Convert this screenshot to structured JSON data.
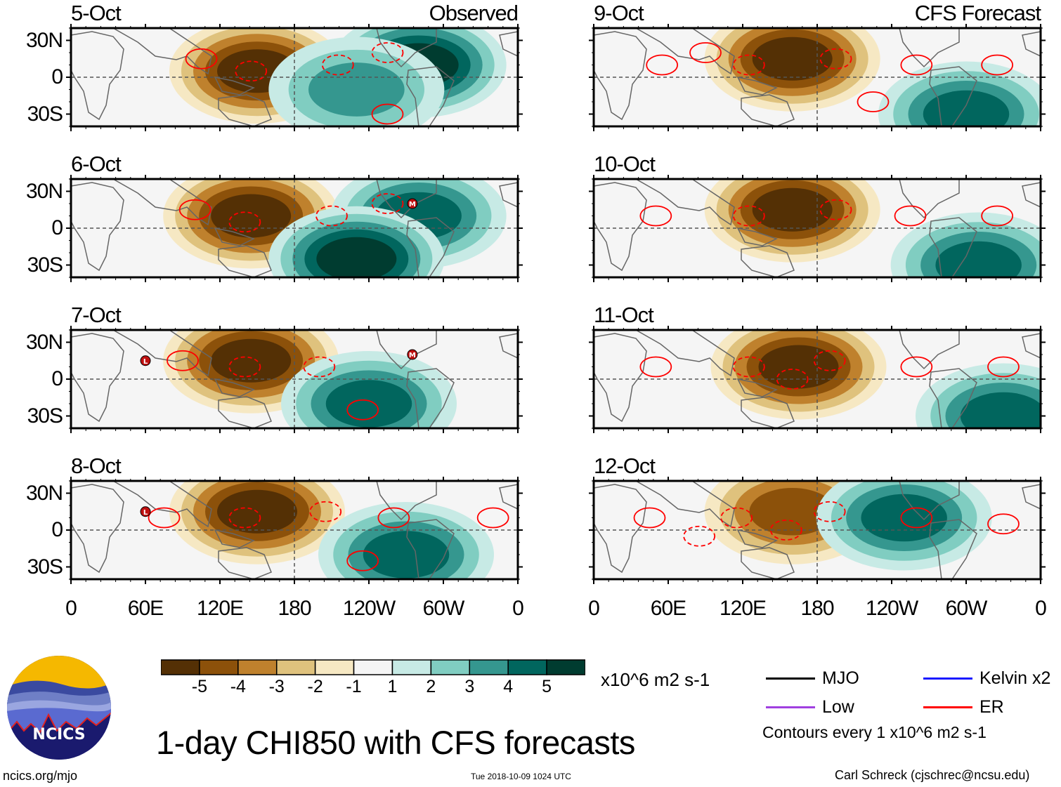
{
  "chart_data": {
    "type": "heatmap",
    "title": "1-day CHI850 with CFS forecasts",
    "variable": "CHI850 (850-hPa velocity potential) anomaly",
    "units": "x10^6 m2 s-1",
    "columns": [
      {
        "label": "Observed",
        "panels": [
          {
            "date": "5-Oct",
            "shading": [
              {
                "region": "Maritime Continent / W Pacific",
                "lon": 150,
                "lat": 5,
                "min_value": -5
              },
              {
                "region": "Central America / Caribbean",
                "lon": -80,
                "lat": 10,
                "max_value": 5
              },
              {
                "region": "Central-East Pacific",
                "lon": -130,
                "lat": -10,
                "max_value": 3
              }
            ],
            "er_contours": [
              {
                "lon": 105,
                "lat": 15,
                "style": "solid"
              },
              {
                "lon": 145,
                "lat": 5,
                "style": "dashed"
              },
              {
                "lon": -145,
                "lat": 10,
                "style": "dashed"
              },
              {
                "lon": -105,
                "lat": 20,
                "style": "dashed"
              },
              {
                "lon": -105,
                "lat": -30,
                "style": "solid"
              }
            ],
            "tc_markers": []
          },
          {
            "date": "6-Oct",
            "shading": [
              {
                "region": "W Pacific",
                "lon": 145,
                "lat": 10,
                "min_value": -5
              },
              {
                "region": "Caribbean",
                "lon": -80,
                "lat": 10,
                "max_value": 4
              },
              {
                "region": "SE Pacific",
                "lon": -130,
                "lat": -25,
                "max_value": 5
              }
            ],
            "er_contours": [
              {
                "lon": 100,
                "lat": 15,
                "style": "solid"
              },
              {
                "lon": 140,
                "lat": 5,
                "style": "dashed"
              },
              {
                "lon": -150,
                "lat": 10,
                "style": "dashed"
              },
              {
                "lon": -105,
                "lat": 20,
                "style": "dashed"
              }
            ],
            "tc_markers": [
              {
                "letter": "M",
                "lon": -85,
                "lat": 20
              }
            ]
          },
          {
            "date": "7-Oct",
            "shading": [
              {
                "region": "W Pacific",
                "lon": 145,
                "lat": 15,
                "min_value": -5
              },
              {
                "region": "SE Pacific",
                "lon": -120,
                "lat": -20,
                "max_value": 4
              }
            ],
            "er_contours": [
              {
                "lon": 90,
                "lat": 15,
                "style": "solid"
              },
              {
                "lon": 140,
                "lat": 10,
                "style": "dashed"
              },
              {
                "lon": -160,
                "lat": 10,
                "style": "dashed"
              },
              {
                "lon": -125,
                "lat": -25,
                "style": "solid"
              }
            ],
            "tc_markers": [
              {
                "letter": "L",
                "lon": 60,
                "lat": 15
              },
              {
                "letter": "M",
                "lon": -85,
                "lat": 20
              }
            ]
          },
          {
            "date": "8-Oct",
            "shading": [
              {
                "region": "W Pacific",
                "lon": 150,
                "lat": 15,
                "min_value": -5
              },
              {
                "region": "S Pacific / S America",
                "lon": -90,
                "lat": -20,
                "max_value": 4
              }
            ],
            "er_contours": [
              {
                "lon": 75,
                "lat": 10,
                "style": "solid"
              },
              {
                "lon": 140,
                "lat": 10,
                "style": "dashed"
              },
              {
                "lon": -155,
                "lat": 15,
                "style": "dashed"
              },
              {
                "lon": -125,
                "lat": -25,
                "style": "solid"
              },
              {
                "lon": -100,
                "lat": 10,
                "style": "solid"
              },
              {
                "lon": -20,
                "lat": 10,
                "style": "solid"
              }
            ],
            "tc_markers": [
              {
                "letter": "L",
                "lon": 60,
                "lat": 15
              }
            ]
          }
        ]
      },
      {
        "label": "CFS Forecast",
        "panels": [
          {
            "date": "9-Oct",
            "shading": [
              {
                "region": "W Pacific",
                "lon": 160,
                "lat": 15,
                "min_value": -5
              },
              {
                "region": "S America",
                "lon": -60,
                "lat": -30,
                "max_value": 4
              }
            ],
            "er_contours": [
              {
                "lon": 55,
                "lat": 10,
                "style": "solid"
              },
              {
                "lon": 90,
                "lat": 20,
                "style": "solid"
              },
              {
                "lon": 125,
                "lat": 10,
                "style": "dashed"
              },
              {
                "lon": -165,
                "lat": 15,
                "style": "dashed"
              },
              {
                "lon": -135,
                "lat": -20,
                "style": "solid"
              },
              {
                "lon": -100,
                "lat": 10,
                "style": "solid"
              },
              {
                "lon": -35,
                "lat": 10,
                "style": "solid"
              }
            ],
            "tc_markers": []
          },
          {
            "date": "10-Oct",
            "shading": [
              {
                "region": "W Pacific",
                "lon": 160,
                "lat": 15,
                "min_value": -5
              },
              {
                "region": "S America",
                "lon": -50,
                "lat": -30,
                "max_value": 4
              }
            ],
            "er_contours": [
              {
                "lon": 50,
                "lat": 10,
                "style": "solid"
              },
              {
                "lon": 125,
                "lat": 10,
                "style": "dashed"
              },
              {
                "lon": -165,
                "lat": 15,
                "style": "dashed"
              },
              {
                "lon": -105,
                "lat": 10,
                "style": "solid"
              },
              {
                "lon": -35,
                "lat": 10,
                "style": "solid"
              }
            ],
            "tc_markers": []
          },
          {
            "date": "11-Oct",
            "shading": [
              {
                "region": "W Pacific",
                "lon": 165,
                "lat": 10,
                "min_value": -5
              },
              {
                "region": "S Atlantic",
                "lon": -30,
                "lat": -30,
                "max_value": 4
              }
            ],
            "er_contours": [
              {
                "lon": 50,
                "lat": 10,
                "style": "solid"
              },
              {
                "lon": 125,
                "lat": 10,
                "style": "dashed"
              },
              {
                "lon": 160,
                "lat": 0,
                "style": "dashed"
              },
              {
                "lon": -170,
                "lat": 15,
                "style": "dashed"
              },
              {
                "lon": -100,
                "lat": 10,
                "style": "solid"
              },
              {
                "lon": -30,
                "lat": 10,
                "style": "solid"
              }
            ],
            "tc_markers": []
          },
          {
            "date": "12-Oct",
            "shading": [
              {
                "region": "W Pacific",
                "lon": 160,
                "lat": 15,
                "min_value": -4
              },
              {
                "region": "E Pacific off Mexico",
                "lon": -110,
                "lat": 10,
                "max_value": 4
              }
            ],
            "er_contours": [
              {
                "lon": 45,
                "lat": 10,
                "style": "solid"
              },
              {
                "lon": 85,
                "lat": -5,
                "style": "dashed"
              },
              {
                "lon": 115,
                "lat": 10,
                "style": "dashed"
              },
              {
                "lon": 155,
                "lat": 0,
                "style": "dashed"
              },
              {
                "lon": -170,
                "lat": 15,
                "style": "dashed"
              },
              {
                "lon": -100,
                "lat": 10,
                "style": "solid"
              },
              {
                "lon": -30,
                "lat": 5,
                "style": "solid"
              }
            ],
            "tc_markers": []
          }
        ]
      }
    ],
    "x_axis": {
      "range": [
        0,
        360
      ],
      "ticks": [
        "0",
        "60E",
        "120E",
        "180",
        "120W",
        "60W",
        "0"
      ]
    },
    "y_axis": {
      "range": [
        -40,
        40
      ],
      "ticks": [
        "30N",
        "0",
        "30S"
      ]
    },
    "colorbar": {
      "levels": [
        "-5",
        "-4",
        "-3",
        "-2",
        "-1",
        "1",
        "2",
        "3",
        "4",
        "5"
      ],
      "colors": [
        "#543005",
        "#8c510a",
        "#bf812d",
        "#dfc27d",
        "#f6e8c3",
        "#f5f5f5",
        "#c7eae5",
        "#80cdc1",
        "#35978f",
        "#01665e",
        "#003c30"
      ],
      "units_label": "x10^6 m2 s-1"
    },
    "legend": {
      "entries": [
        {
          "label": "MJO",
          "color": "#000000"
        },
        {
          "label": "Kelvin x2",
          "color": "#1a1aff"
        },
        {
          "label": "Low",
          "color": "#a040e0"
        },
        {
          "label": "ER",
          "color": "#ff0000"
        }
      ],
      "note": "Contours every 1 x10^6 m2 s-1"
    }
  },
  "footer": {
    "logo_text": "NCICS",
    "site": "ncics.org/mjo",
    "timestamp": "Tue 2018-10-09 1024 UTC",
    "author": "Carl Schreck (cjschrec@ncsu.edu)"
  },
  "colors": {
    "land_outline": "#666666",
    "grid_dash": "#555555",
    "contour": "#ff0000"
  }
}
